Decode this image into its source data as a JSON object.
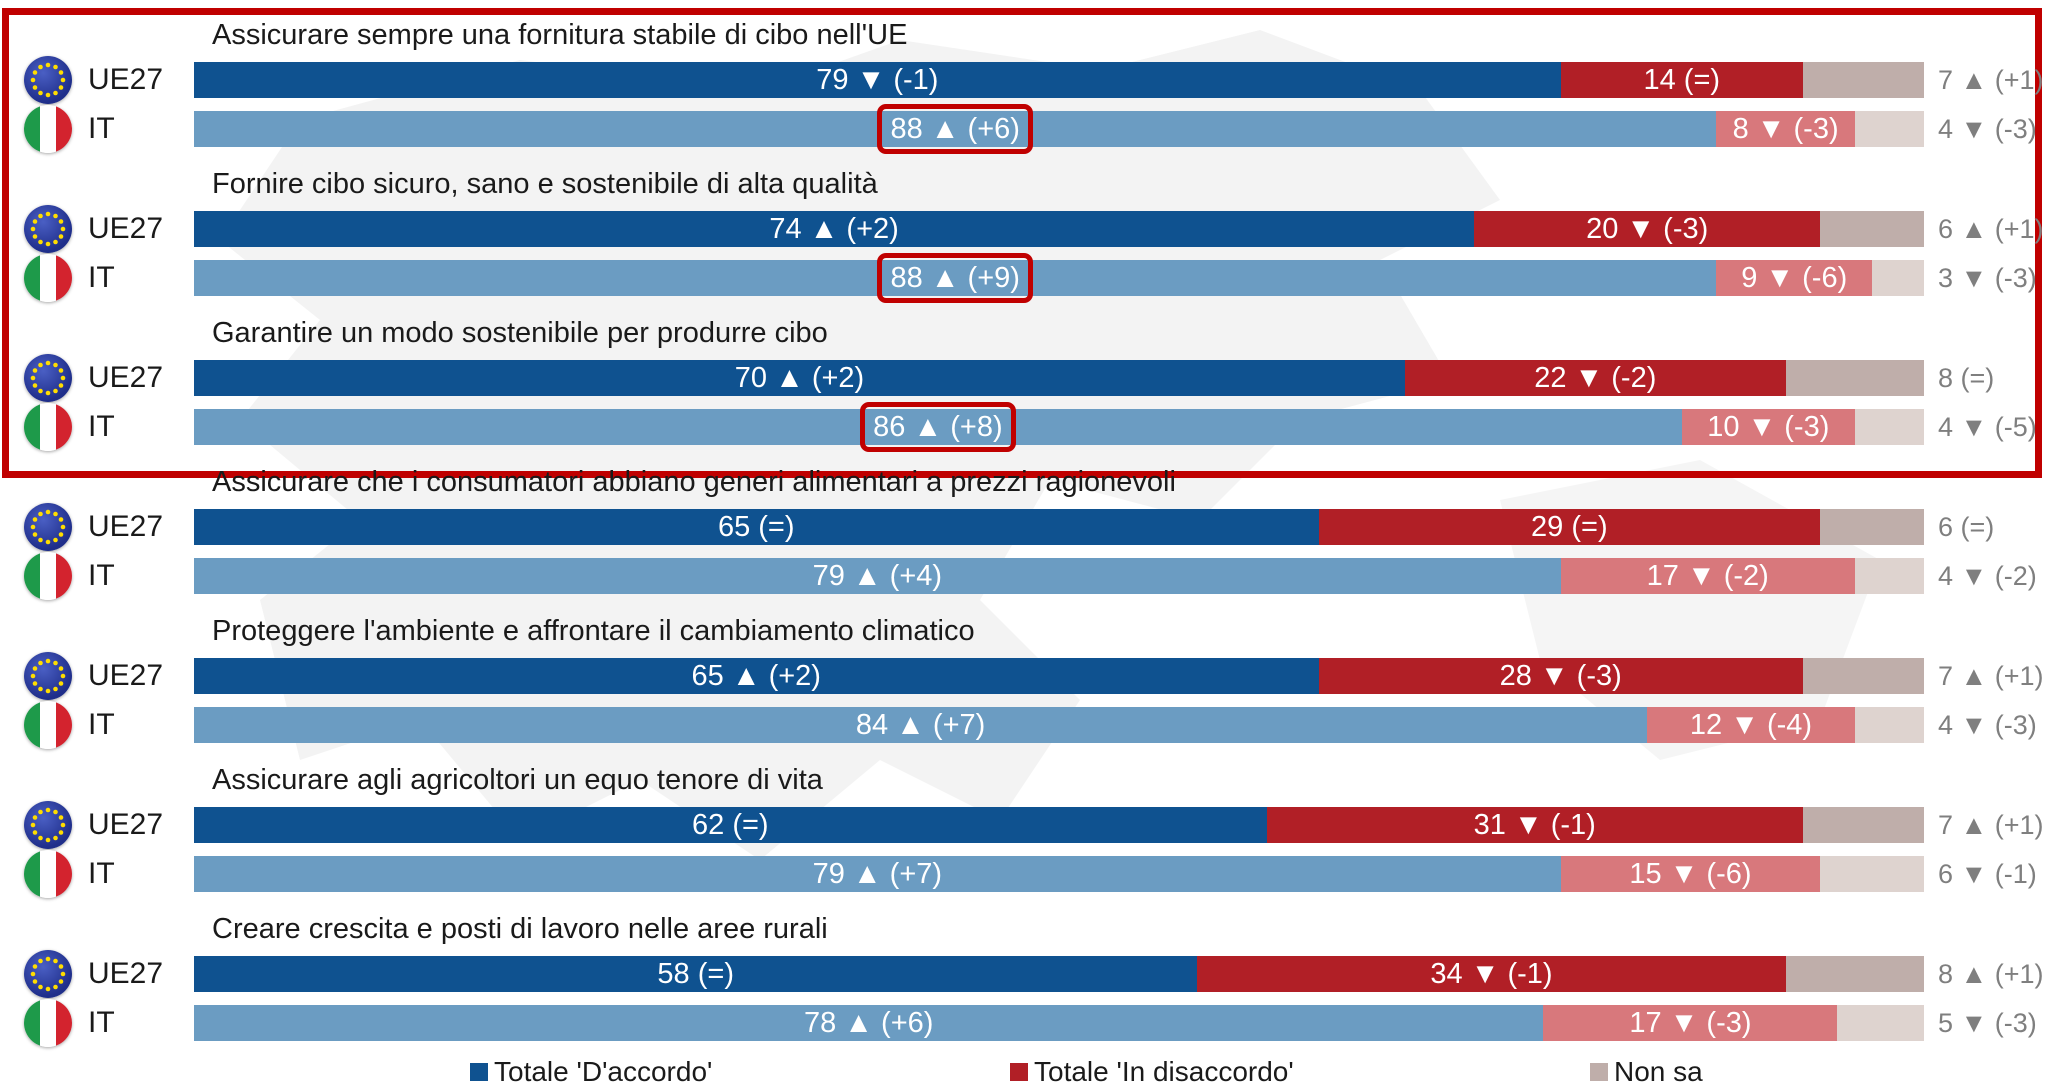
{
  "colors": {
    "agree_eu": "#0f5290",
    "agree_it": "#6b9cc2",
    "disagree_eu": "#b11f26",
    "disagree_it": "#d8787c",
    "dk_eu": "#bfaeaa",
    "dk_it": "#ded3cf",
    "highlight": "#c00000"
  },
  "legend": [
    {
      "label": "Totale 'D'accordo'",
      "color": "#0f5290"
    },
    {
      "label": "Totale 'In disaccordo'",
      "color": "#b11f26"
    },
    {
      "label": "Non sa",
      "color": "#bfaeaa"
    }
  ],
  "chart_data": {
    "type": "bar",
    "orientation": "horizontal-stacked",
    "scale_max": 100,
    "series_names": [
      "Totale 'D'accordo'",
      "Totale 'In disaccordo'",
      "Non sa"
    ],
    "groups": [
      {
        "title": "Assicurare sempre una fornitura stabile di cibo nell'UE",
        "rows": [
          {
            "label": "UE27",
            "agree": 79,
            "agree_text": "79 ▼ (-1)",
            "disagree": 14,
            "disagree_text": "14 (=)",
            "dk": 7,
            "dk_text": "7 ▲ (+1)",
            "highlight": false
          },
          {
            "label": "IT",
            "agree": 88,
            "agree_text": "88 ▲ (+6)",
            "disagree": 8,
            "disagree_text": "8 ▼ (-3)",
            "dk": 4,
            "dk_text": "4 ▼ (-3)",
            "highlight": true
          }
        ]
      },
      {
        "title": "Fornire cibo sicuro, sano e sostenibile di alta qualità",
        "rows": [
          {
            "label": "UE27",
            "agree": 74,
            "agree_text": "74 ▲ (+2)",
            "disagree": 20,
            "disagree_text": "20 ▼ (-3)",
            "dk": 6,
            "dk_text": "6 ▲ (+1)",
            "highlight": false
          },
          {
            "label": "IT",
            "agree": 88,
            "agree_text": "88 ▲ (+9)",
            "disagree": 9,
            "disagree_text": "9 ▼ (-6)",
            "dk": 3,
            "dk_text": "3 ▼ (-3)",
            "highlight": true
          }
        ]
      },
      {
        "title": "Garantire un modo sostenibile per produrre cibo",
        "rows": [
          {
            "label": "UE27",
            "agree": 70,
            "agree_text": "70 ▲ (+2)",
            "disagree": 22,
            "disagree_text": "22 ▼ (-2)",
            "dk": 8,
            "dk_text": "8 (=)",
            "highlight": false
          },
          {
            "label": "IT",
            "agree": 86,
            "agree_text": "86 ▲ (+8)",
            "disagree": 10,
            "disagree_text": "10 ▼ (-3)",
            "dk": 4,
            "dk_text": "4 ▼ (-5)",
            "highlight": true
          }
        ]
      },
      {
        "title": "Assicurare che i consumatori abbiano generi alimentari a prezzi ragionevoli",
        "rows": [
          {
            "label": "UE27",
            "agree": 65,
            "agree_text": "65 (=)",
            "disagree": 29,
            "disagree_text": "29 (=)",
            "dk": 6,
            "dk_text": "6 (=)",
            "highlight": false
          },
          {
            "label": "IT",
            "agree": 79,
            "agree_text": "79 ▲ (+4)",
            "disagree": 17,
            "disagree_text": "17 ▼ (-2)",
            "dk": 4,
            "dk_text": "4 ▼ (-2)",
            "highlight": false
          }
        ]
      },
      {
        "title": "Proteggere l'ambiente e affrontare il cambiamento climatico",
        "rows": [
          {
            "label": "UE27",
            "agree": 65,
            "agree_text": "65 ▲ (+2)",
            "disagree": 28,
            "disagree_text": "28 ▼ (-3)",
            "dk": 7,
            "dk_text": "7 ▲ (+1)",
            "highlight": false
          },
          {
            "label": "IT",
            "agree": 84,
            "agree_text": "84 ▲ (+7)",
            "disagree": 12,
            "disagree_text": "12 ▼ (-4)",
            "dk": 4,
            "dk_text": "4 ▼ (-3)",
            "highlight": false
          }
        ]
      },
      {
        "title": "Assicurare agli agricoltori un equo tenore di vita",
        "rows": [
          {
            "label": "UE27",
            "agree": 62,
            "agree_text": "62 (=)",
            "disagree": 31,
            "disagree_text": "31 ▼ (-1)",
            "dk": 7,
            "dk_text": "7 ▲ (+1)",
            "highlight": false
          },
          {
            "label": "IT",
            "agree": 79,
            "agree_text": "79 ▲ (+7)",
            "disagree": 15,
            "disagree_text": "15 ▼ (-6)",
            "dk": 6,
            "dk_text": "6 ▼ (-1)",
            "highlight": false
          }
        ]
      },
      {
        "title": "Creare crescita e posti di lavoro nelle aree rurali",
        "rows": [
          {
            "label": "UE27",
            "agree": 58,
            "agree_text": "58 (=)",
            "disagree": 34,
            "disagree_text": "34 ▼ (-1)",
            "dk": 8,
            "dk_text": "8 ▲ (+1)",
            "highlight": false
          },
          {
            "label": "IT",
            "agree": 78,
            "agree_text": "78 ▲ (+6)",
            "disagree": 17,
            "disagree_text": "17 ▼ (-3)",
            "dk": 5,
            "dk_text": "5 ▼ (-3)",
            "highlight": false
          }
        ]
      }
    ]
  }
}
